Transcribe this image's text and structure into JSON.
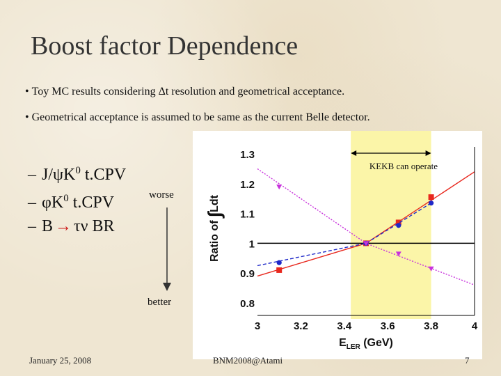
{
  "slide": {
    "title": "Boost factor Dependence",
    "bullets": [
      "Toy MC results considering Δt resolution and geometrical acceptance.",
      "Geometrical acceptance is assumed to be same as the current Belle detector."
    ],
    "bullet_symbol": "•",
    "list_dash": "–",
    "list_items": [
      {
        "label": "J/ψK",
        "sup": "0",
        "label2": " t.CPV"
      },
      {
        "label": "φK",
        "sup": "0",
        "label2": " t.CPV"
      },
      {
        "label": "B",
        "arrow": "→",
        "label2": "τν BR"
      }
    ],
    "worse_label": "worse",
    "better_label": "better"
  },
  "footer": {
    "date": "January 25, 2008",
    "conference": "BNM2008@Atami",
    "page": "7"
  },
  "colors": {
    "background": "#efe6d2",
    "band": "#fbf5a8",
    "red": "#e8281e",
    "blue": "#1e28c8",
    "magenta": "#c832dc",
    "reference": "#000000"
  },
  "chart_data": {
    "type": "line",
    "title": "",
    "xlabel": "E_LER (GeV)",
    "xlabel_main": "E",
    "xlabel_sub": "LER",
    "xlabel_unit": " (GeV)",
    "ylabel": "Ratio of ∫Ldt",
    "ylabel_main": "Ratio of ",
    "ylabel_integral": "∫",
    "ylabel_tail": "Ldt",
    "xlim": [
      3,
      4
    ],
    "ylim": [
      0.8,
      1.3
    ],
    "xticks": [
      3,
      3.2,
      3.4,
      3.6,
      3.8,
      4
    ],
    "xtick_labels": [
      "3",
      "3.2",
      "3.4",
      "3.6",
      "3.8",
      "4"
    ],
    "yticks": [
      0.8,
      0.9,
      1,
      1.1,
      1.2,
      1.3
    ],
    "ytick_labels": [
      "0.8",
      "0.9",
      "1",
      "1.1",
      "1.2",
      "1.3"
    ],
    "band": {
      "x0": 3.43,
      "x1": 3.8,
      "label": "KEKB can operate"
    },
    "reference_y": 1.0,
    "series": [
      {
        "color": "#e8281e",
        "marker": "square",
        "style": "solid",
        "x": [
          3.1,
          3.5,
          3.65,
          3.8
        ],
        "y": [
          0.91,
          1.0,
          1.07,
          1.155
        ],
        "curve_x": [
          3.0,
          3.5,
          4.0
        ],
        "curve_y": [
          0.89,
          1.0,
          1.24
        ]
      },
      {
        "color": "#1e28c8",
        "marker": "circle",
        "style": "dashed",
        "x": [
          3.1,
          3.5,
          3.65,
          3.8
        ],
        "y": [
          0.935,
          1.0,
          1.06,
          1.135
        ],
        "curve_x": [
          3.0,
          3.5,
          3.8
        ],
        "curve_y": [
          0.925,
          1.0,
          1.135
        ]
      },
      {
        "color": "#c832dc",
        "marker": "triangle",
        "style": "dotted",
        "x": [
          3.1,
          3.5,
          3.65,
          3.8
        ],
        "y": [
          1.19,
          1.0,
          0.965,
          0.915
        ],
        "curve_x": [
          3.0,
          3.5,
          4.0
        ],
        "curve_y": [
          1.25,
          1.0,
          0.86
        ]
      }
    ]
  }
}
